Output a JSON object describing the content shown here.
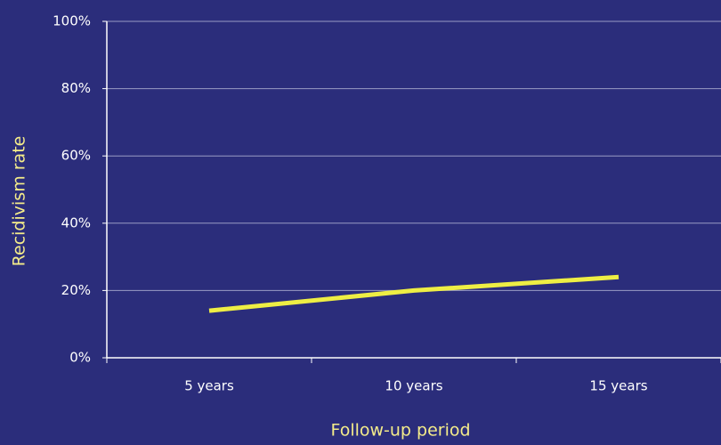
{
  "chart_data": {
    "type": "line",
    "x_label": "Follow-up period",
    "y_label": "Recidivism rate",
    "categories": [
      "5 years",
      "10 years",
      "15 years"
    ],
    "series": [
      {
        "name": "Recidivism rate",
        "color": "#eeee44",
        "values": [
          14,
          20,
          24
        ]
      }
    ],
    "ylim": [
      0,
      100
    ],
    "yticks": [
      {
        "value": 0,
        "label": "0%"
      },
      {
        "value": 20,
        "label": "20%"
      },
      {
        "value": 40,
        "label": "40%"
      },
      {
        "value": 60,
        "label": "60%"
      },
      {
        "value": 80,
        "label": "80%"
      },
      {
        "value": 100,
        "label": "100%"
      }
    ],
    "grid": true
  }
}
